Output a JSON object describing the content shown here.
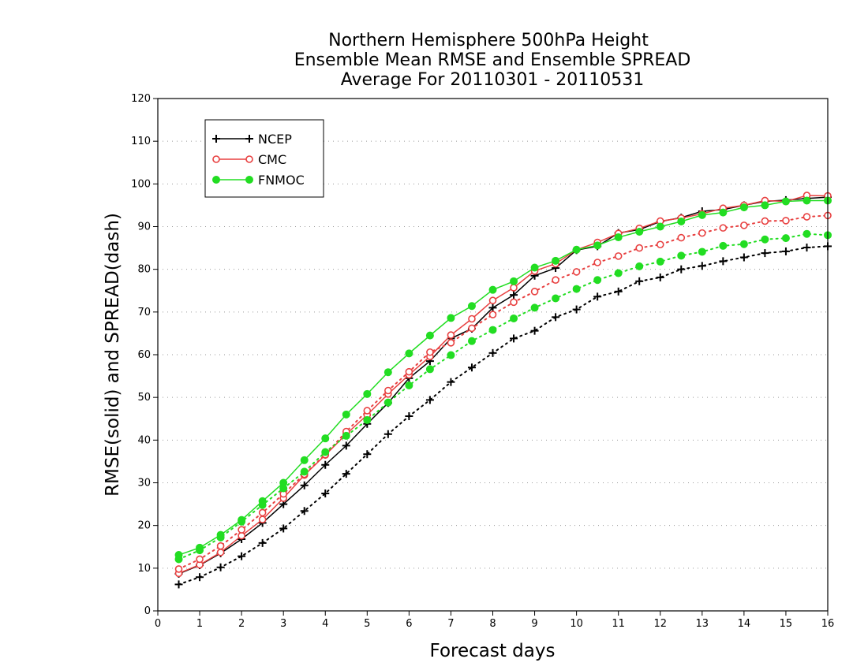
{
  "chart_data": {
    "type": "line",
    "title_lines": [
      "Northern Hemisphere 500hPa Height",
      "Ensemble Mean RMSE and Ensemble SPREAD",
      "Average For 20110301 - 20110531"
    ],
    "xlabel": "Forecast days",
    "ylabel": "RMSE(solid) and SPREAD(dash)",
    "xlim": [
      0,
      16
    ],
    "ylim": [
      0,
      120
    ],
    "x_ticks": [
      0,
      1,
      2,
      3,
      4,
      5,
      6,
      7,
      8,
      9,
      10,
      11,
      12,
      13,
      14,
      15,
      16
    ],
    "y_ticks": [
      0,
      10,
      20,
      30,
      40,
      50,
      60,
      70,
      80,
      90,
      100,
      110,
      120
    ],
    "grid": "horizontal dotted",
    "legend_position": "top-left",
    "legend": [
      {
        "label": "NCEP",
        "color": "#000000",
        "marker": "plus"
      },
      {
        "label": "CMC",
        "color": "#e84040",
        "marker": "open-circle"
      },
      {
        "label": "FNMOC",
        "color": "#22dd22",
        "marker": "filled-circle"
      }
    ],
    "x": [
      0.5,
      1,
      1.5,
      2,
      2.5,
      3,
      3.5,
      4,
      4.5,
      5,
      5.5,
      6,
      6.5,
      7,
      7.5,
      8,
      8.5,
      9,
      9.5,
      10,
      10.5,
      11,
      11.5,
      12,
      12.5,
      13,
      13.5,
      14,
      14.5,
      15,
      15.5,
      16
    ],
    "series": [
      {
        "name": "NCEP",
        "metric": "RMSE",
        "style": "solid",
        "color": "#000000",
        "marker": "plus",
        "values": [
          8.7,
          10.7,
          13.5,
          16.8,
          20.6,
          25.0,
          29.4,
          34.2,
          38.7,
          43.8,
          48.7,
          54.5,
          58.5,
          63.8,
          66.1,
          71.0,
          74.0,
          78.5,
          80.3,
          84.5,
          85.4,
          88.5,
          89.3,
          91.2,
          92.1,
          93.6,
          94.0,
          95.0,
          95.9,
          96.2,
          96.6,
          96.9
        ]
      },
      {
        "name": "NCEP",
        "metric": "SPREAD",
        "style": "dotted",
        "color": "#000000",
        "marker": "plus",
        "values": [
          6.2,
          7.9,
          10.2,
          12.8,
          15.9,
          19.3,
          23.4,
          27.5,
          32.1,
          36.7,
          41.4,
          45.6,
          49.4,
          53.6,
          57.0,
          60.4,
          63.8,
          65.6,
          68.8,
          70.6,
          73.6,
          74.8,
          77.2,
          78.1,
          80.0,
          80.8,
          81.9,
          82.8,
          83.8,
          84.2,
          85.1,
          85.4
        ]
      },
      {
        "name": "CMC",
        "metric": "RMSE",
        "style": "solid",
        "color": "#e84040",
        "marker": "open-circle",
        "values": [
          8.8,
          10.8,
          13.7,
          17.6,
          21.4,
          26.4,
          31.8,
          36.5,
          41.4,
          45.9,
          50.8,
          55.3,
          59.6,
          64.6,
          68.4,
          72.7,
          75.7,
          79.6,
          81.3,
          84.6,
          86.3,
          88.4,
          89.6,
          91.3,
          92.0,
          93.0,
          94.3,
          95.0,
          96.1,
          95.9,
          97.3,
          97.2
        ]
      },
      {
        "name": "CMC",
        "metric": "SPREAD",
        "style": "dotted",
        "color": "#e84040",
        "marker": "open-circle",
        "values": [
          9.8,
          12.1,
          15.2,
          19.0,
          23.0,
          27.4,
          32.0,
          36.6,
          42.0,
          46.9,
          51.6,
          56.0,
          60.6,
          62.8,
          66.2,
          69.4,
          72.3,
          74.8,
          77.5,
          79.4,
          81.6,
          83.1,
          85.0,
          85.8,
          87.4,
          88.5,
          89.7,
          90.3,
          91.3,
          91.4,
          92.3,
          92.6
        ]
      },
      {
        "name": "FNMOC",
        "metric": "RMSE",
        "style": "solid",
        "color": "#22dd22",
        "marker": "filled-circle",
        "values": [
          13.1,
          14.8,
          17.8,
          21.3,
          25.7,
          30.0,
          35.3,
          40.4,
          46.0,
          50.8,
          55.9,
          60.3,
          64.5,
          68.6,
          71.4,
          75.2,
          77.2,
          80.4,
          82.0,
          84.6,
          85.6,
          87.5,
          88.8,
          90.0,
          91.2,
          92.7,
          93.3,
          94.5,
          95.0,
          95.9,
          96.1,
          96.1
        ]
      },
      {
        "name": "FNMOC",
        "metric": "SPREAD",
        "style": "dotted",
        "color": "#22dd22",
        "marker": "filled-circle",
        "values": [
          12.1,
          14.2,
          17.2,
          20.9,
          24.8,
          28.7,
          32.6,
          37.2,
          41.0,
          44.7,
          48.8,
          52.8,
          56.6,
          59.9,
          63.2,
          65.8,
          68.5,
          71.0,
          73.2,
          75.4,
          77.5,
          79.1,
          80.7,
          81.8,
          83.2,
          84.1,
          85.5,
          85.9,
          87.0,
          87.3,
          88.3,
          88.0
        ]
      }
    ]
  }
}
